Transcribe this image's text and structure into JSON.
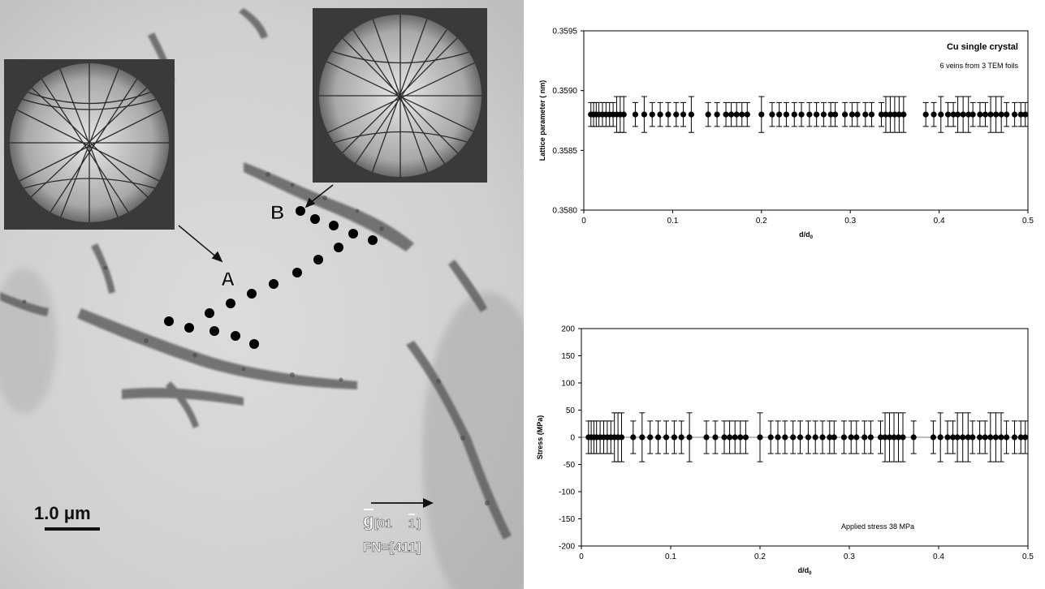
{
  "micrograph": {
    "label_a": "A",
    "label_b": "B",
    "scale_bar": "1.0 μm",
    "g_vector": "g[01 1]",
    "g_vector_main": "g",
    "g_vector_sub": "[01",
    "g_vector_bar1": "1",
    "g_vector_close": "]",
    "foil_normal": "FN=[411]"
  },
  "chart_data": [
    {
      "type": "scatter",
      "title": "Cu single crystal",
      "subtitle": "6 veins from 3 TEM foils",
      "xlabel": "d/d",
      "xlabel_sub": "0",
      "ylabel": "Lattice parameter  (  nm)",
      "xlim": [
        0,
        0.5
      ],
      "ylim": [
        0.358,
        0.3595
      ],
      "xticks": [
        "0",
        "0.1",
        "0.2",
        "0.3",
        "0.4",
        "0.5"
      ],
      "yticks": [
        "0.3580",
        "0.3585",
        "0.3590",
        "0.3595"
      ],
      "grid": false,
      "x": [
        0.008,
        0.011,
        0.014,
        0.017,
        0.021,
        0.025,
        0.029,
        0.033,
        0.037,
        0.041,
        0.045,
        0.058,
        0.068,
        0.077,
        0.086,
        0.095,
        0.104,
        0.112,
        0.121,
        0.14,
        0.15,
        0.16,
        0.166,
        0.172,
        0.178,
        0.184,
        0.2,
        0.212,
        0.22,
        0.228,
        0.237,
        0.245,
        0.254,
        0.262,
        0.27,
        0.278,
        0.283,
        0.294,
        0.302,
        0.308,
        0.317,
        0.324,
        0.335,
        0.34,
        0.345,
        0.35,
        0.355,
        0.36,
        0.385,
        0.394,
        0.402,
        0.41,
        0.416,
        0.421,
        0.427,
        0.433,
        0.438,
        0.446,
        0.452,
        0.458,
        0.464,
        0.47,
        0.476,
        0.485,
        0.492,
        0.497
      ],
      "y": [
        0.3588,
        0.3588,
        0.3588,
        0.3588,
        0.3588,
        0.3588,
        0.3588,
        0.3588,
        0.3588,
        0.3588,
        0.3588,
        0.3588,
        0.3588,
        0.3588,
        0.3588,
        0.3588,
        0.3588,
        0.3588,
        0.3588,
        0.3588,
        0.3588,
        0.3588,
        0.3588,
        0.3588,
        0.3588,
        0.3588,
        0.3588,
        0.3588,
        0.3588,
        0.3588,
        0.3588,
        0.3588,
        0.3588,
        0.3588,
        0.3588,
        0.3588,
        0.3588,
        0.3588,
        0.3588,
        0.3588,
        0.3588,
        0.3588,
        0.3588,
        0.3588,
        0.3588,
        0.3588,
        0.3588,
        0.3588,
        0.3588,
        0.3588,
        0.3588,
        0.3588,
        0.3588,
        0.3588,
        0.3588,
        0.3588,
        0.3588,
        0.3588,
        0.3588,
        0.3588,
        0.3588,
        0.3588,
        0.3588,
        0.3588,
        0.3588,
        0.3588
      ],
      "error": [
        0.0001,
        0.0001,
        0.0001,
        0.0001,
        0.0001,
        0.0001,
        0.0001,
        0.0001,
        0.00015,
        0.00015,
        0.00015,
        0.0001,
        0.00015,
        0.0001,
        0.0001,
        0.0001,
        0.0001,
        0.0001,
        0.00015,
        0.0001,
        0.0001,
        0.0001,
        0.0001,
        0.0001,
        0.0001,
        0.0001,
        0.00015,
        0.0001,
        0.0001,
        0.0001,
        0.0001,
        0.0001,
        0.0001,
        0.0001,
        0.0001,
        0.0001,
        0.0001,
        0.0001,
        0.0001,
        0.0001,
        0.0001,
        0.0001,
        0.0001,
        0.00015,
        0.00015,
        0.00015,
        0.00015,
        0.00015,
        0.0001,
        0.0001,
        0.00015,
        0.0001,
        0.0001,
        0.00015,
        0.00015,
        0.00015,
        0.0001,
        0.0001,
        0.0001,
        0.00015,
        0.00015,
        0.00015,
        0.0001,
        0.0001,
        0.0001,
        0.0001
      ]
    },
    {
      "type": "scatter",
      "annotation": "Applied stress 38 MPa",
      "xlabel": "d/d",
      "xlabel_sub": "0",
      "ylabel": "Stress (MPa)",
      "xlim": [
        0,
        0.5
      ],
      "ylim": [
        -200,
        200
      ],
      "xticks": [
        "0",
        "0.1",
        "0.2",
        "0.3",
        "0.4",
        "0.5"
      ],
      "yticks": [
        "-200",
        "-150",
        "-100",
        "-50",
        "0",
        "50",
        "100",
        "150",
        "200"
      ],
      "grid": false,
      "reference_line": 0,
      "x": [
        0.008,
        0.011,
        0.014,
        0.017,
        0.021,
        0.025,
        0.029,
        0.033,
        0.037,
        0.041,
        0.045,
        0.058,
        0.068,
        0.077,
        0.086,
        0.095,
        0.104,
        0.112,
        0.121,
        0.14,
        0.15,
        0.16,
        0.166,
        0.172,
        0.178,
        0.184,
        0.2,
        0.212,
        0.22,
        0.228,
        0.237,
        0.245,
        0.254,
        0.262,
        0.27,
        0.278,
        0.283,
        0.294,
        0.302,
        0.308,
        0.317,
        0.324,
        0.335,
        0.34,
        0.345,
        0.35,
        0.355,
        0.36,
        0.372,
        0.394,
        0.402,
        0.41,
        0.416,
        0.421,
        0.427,
        0.433,
        0.438,
        0.446,
        0.452,
        0.458,
        0.464,
        0.47,
        0.476,
        0.485,
        0.492,
        0.497
      ],
      "y": [
        0,
        0,
        0,
        0,
        0,
        0,
        0,
        0,
        0,
        0,
        0,
        0,
        0,
        0,
        0,
        0,
        0,
        0,
        0,
        0,
        0,
        0,
        0,
        0,
        0,
        0,
        0,
        0,
        0,
        0,
        0,
        0,
        0,
        0,
        0,
        0,
        0,
        0,
        0,
        0,
        0,
        0,
        0,
        0,
        0,
        0,
        0,
        0,
        0,
        0,
        0,
        0,
        0,
        0,
        0,
        0,
        0,
        0,
        0,
        0,
        0,
        0,
        0,
        0,
        0,
        0
      ],
      "error": [
        30,
        30,
        30,
        30,
        30,
        30,
        30,
        30,
        45,
        45,
        45,
        30,
        45,
        30,
        30,
        30,
        30,
        30,
        45,
        30,
        30,
        30,
        30,
        30,
        30,
        30,
        45,
        30,
        30,
        30,
        30,
        30,
        30,
        30,
        30,
        30,
        30,
        30,
        30,
        30,
        30,
        30,
        30,
        45,
        45,
        45,
        45,
        45,
        30,
        30,
        45,
        30,
        30,
        45,
        45,
        45,
        30,
        30,
        30,
        45,
        45,
        45,
        30,
        30,
        30,
        30
      ]
    }
  ]
}
